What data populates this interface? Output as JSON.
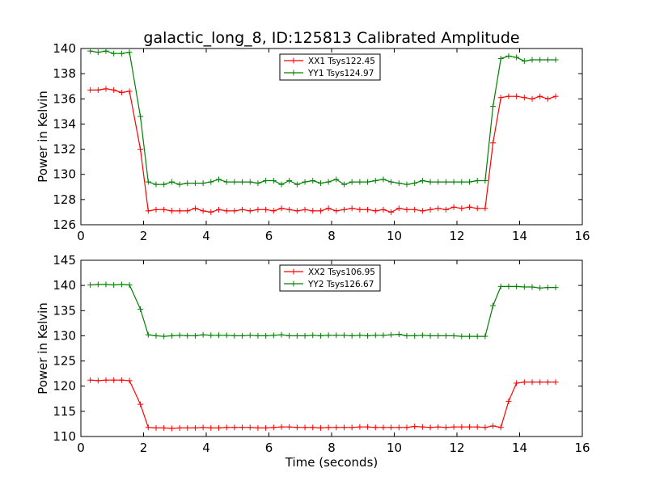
{
  "figure": {
    "title": "galactic_long_8, ID:125813 Calibrated Amplitude"
  },
  "chart_data": [
    {
      "type": "line",
      "xlabel": "",
      "ylabel": "Power in Kelvin",
      "xlim": [
        0,
        16
      ],
      "ylim": [
        126,
        140
      ],
      "xticks": [
        0,
        2,
        4,
        6,
        8,
        10,
        12,
        14,
        16
      ],
      "yticks": [
        126,
        128,
        130,
        132,
        134,
        136,
        138,
        140
      ],
      "grid": false,
      "legend": "top-center",
      "x": [
        0.3,
        0.55,
        0.8,
        1.05,
        1.3,
        1.55,
        1.9,
        2.15,
        2.4,
        2.65,
        2.9,
        3.15,
        3.4,
        3.65,
        3.9,
        4.15,
        4.4,
        4.65,
        4.9,
        5.15,
        5.4,
        5.65,
        5.9,
        6.15,
        6.4,
        6.65,
        6.9,
        7.15,
        7.4,
        7.65,
        7.9,
        8.15,
        8.4,
        8.65,
        8.9,
        9.15,
        9.4,
        9.65,
        9.9,
        10.15,
        10.4,
        10.65,
        10.9,
        11.15,
        11.4,
        11.65,
        11.9,
        12.15,
        12.4,
        12.65,
        12.9,
        13.15,
        13.4,
        13.65,
        13.9,
        14.15,
        14.4,
        14.65,
        14.9,
        15.15
      ],
      "series": [
        {
          "name": "XX1 Tsys122.45",
          "color": "#ff0000",
          "values": [
            136.7,
            136.7,
            136.8,
            136.7,
            136.5,
            136.6,
            132.0,
            127.1,
            127.2,
            127.2,
            127.1,
            127.1,
            127.1,
            127.3,
            127.1,
            127.0,
            127.2,
            127.1,
            127.1,
            127.2,
            127.1,
            127.2,
            127.2,
            127.1,
            127.3,
            127.2,
            127.1,
            127.2,
            127.1,
            127.1,
            127.3,
            127.1,
            127.2,
            127.3,
            127.2,
            127.2,
            127.1,
            127.2,
            127.0,
            127.3,
            127.2,
            127.2,
            127.1,
            127.2,
            127.3,
            127.2,
            127.4,
            127.3,
            127.4,
            127.3,
            127.3,
            132.5,
            136.1,
            136.2,
            136.2,
            136.1,
            136.0,
            136.2,
            136.0,
            136.2
          ]
        },
        {
          "name": "YY1 Tsys124.97",
          "color": "#008000",
          "values": [
            139.8,
            139.7,
            139.8,
            139.6,
            139.6,
            139.7,
            134.6,
            129.4,
            129.2,
            129.2,
            129.4,
            129.2,
            129.3,
            129.3,
            129.3,
            129.4,
            129.6,
            129.4,
            129.4,
            129.4,
            129.4,
            129.3,
            129.5,
            129.5,
            129.2,
            129.5,
            129.2,
            129.4,
            129.5,
            129.3,
            129.4,
            129.6,
            129.2,
            129.4,
            129.4,
            129.4,
            129.5,
            129.6,
            129.4,
            129.3,
            129.2,
            129.3,
            129.5,
            129.4,
            129.4,
            129.4,
            129.4,
            129.4,
            129.4,
            129.5,
            129.5,
            135.4,
            139.2,
            139.4,
            139.3,
            139.0,
            139.1,
            139.1,
            139.1,
            139.1
          ]
        }
      ]
    },
    {
      "type": "line",
      "xlabel": "Time (seconds)",
      "ylabel": "Power in Kelvin",
      "xlim": [
        0,
        16
      ],
      "ylim": [
        110,
        145
      ],
      "xticks": [
        0,
        2,
        4,
        6,
        8,
        10,
        12,
        14,
        16
      ],
      "yticks": [
        110,
        115,
        120,
        125,
        130,
        135,
        140,
        145
      ],
      "grid": false,
      "legend": "top-center",
      "x": [
        0.3,
        0.55,
        0.8,
        1.05,
        1.3,
        1.55,
        1.9,
        2.15,
        2.4,
        2.65,
        2.9,
        3.15,
        3.4,
        3.65,
        3.9,
        4.15,
        4.4,
        4.65,
        4.9,
        5.15,
        5.4,
        5.65,
        5.9,
        6.15,
        6.4,
        6.65,
        6.9,
        7.15,
        7.4,
        7.65,
        7.9,
        8.15,
        8.4,
        8.65,
        8.9,
        9.15,
        9.4,
        9.65,
        9.9,
        10.15,
        10.4,
        10.65,
        10.9,
        11.15,
        11.4,
        11.65,
        11.9,
        12.15,
        12.4,
        12.65,
        12.9,
        13.15,
        13.4,
        13.65,
        13.9,
        14.15,
        14.4,
        14.65,
        14.9,
        15.15
      ],
      "series": [
        {
          "name": "XX2 Tsys106.95",
          "color": "#ff0000",
          "values": [
            121.2,
            121.1,
            121.2,
            121.2,
            121.2,
            121.1,
            116.4,
            111.8,
            111.7,
            111.7,
            111.6,
            111.7,
            111.7,
            111.7,
            111.8,
            111.7,
            111.7,
            111.8,
            111.8,
            111.8,
            111.8,
            111.7,
            111.7,
            111.8,
            111.9,
            111.9,
            111.8,
            111.8,
            111.8,
            111.7,
            111.8,
            111.8,
            111.8,
            111.8,
            111.9,
            111.9,
            111.8,
            111.8,
            111.8,
            111.8,
            111.8,
            112.0,
            111.9,
            111.8,
            111.9,
            111.8,
            111.9,
            111.9,
            111.9,
            111.9,
            111.8,
            112.1,
            111.8,
            117.0,
            120.6,
            120.8,
            120.8,
            120.8,
            120.8,
            120.8
          ]
        },
        {
          "name": "YY2 Tsys126.67",
          "color": "#008000",
          "values": [
            140.1,
            140.2,
            140.2,
            140.1,
            140.2,
            140.1,
            135.3,
            130.2,
            130.0,
            129.9,
            130.0,
            130.1,
            130.0,
            130.0,
            130.2,
            130.1,
            130.1,
            130.1,
            130.0,
            130.0,
            130.1,
            130.0,
            130.0,
            130.1,
            130.2,
            130.0,
            130.0,
            130.0,
            130.1,
            130.0,
            130.1,
            130.1,
            130.1,
            130.0,
            130.1,
            130.0,
            130.1,
            130.1,
            130.2,
            130.3,
            130.0,
            130.0,
            130.1,
            130.0,
            130.0,
            130.0,
            130.0,
            129.9,
            129.9,
            129.9,
            129.9,
            136.0,
            139.8,
            139.8,
            139.8,
            139.7,
            139.7,
            139.5,
            139.6,
            139.6
          ]
        }
      ]
    }
  ]
}
